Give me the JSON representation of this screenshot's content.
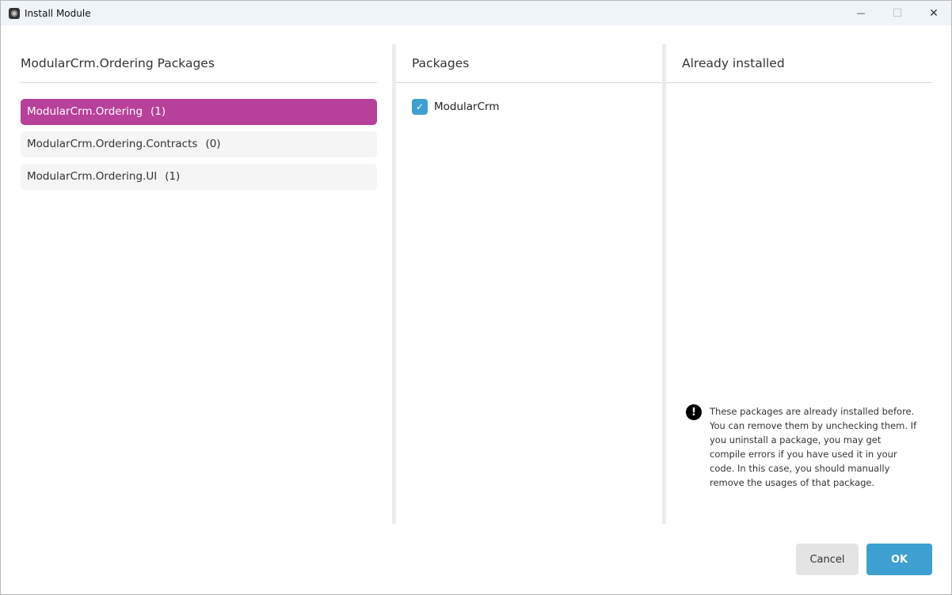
{
  "window": {
    "title": "Install Module",
    "minimize": "—",
    "maximize": "☐",
    "close": "✕"
  },
  "left": {
    "header": "ModularCrm.Ordering Packages",
    "items": [
      {
        "label": "ModularCrm.Ordering",
        "count": "(1)"
      },
      {
        "label": "ModularCrm.Ordering.Contracts",
        "count": "(0)"
      },
      {
        "label": "ModularCrm.Ordering.UI",
        "count": "(1)"
      }
    ]
  },
  "middle": {
    "header": "Packages",
    "packages": [
      {
        "label": "ModularCrm",
        "checked": true,
        "check": "✓"
      }
    ]
  },
  "right": {
    "header": "Already installed",
    "note_icon": "!",
    "note": "These packages are already installed before. You can remove them by unchecking them. If you uninstall a package, you may get compile errors if you have used it in your code. In this case, you should manually remove the usages of that package."
  },
  "footer": {
    "cancel": "Cancel",
    "ok": "OK"
  },
  "colors": {
    "accent": "#b7409a",
    "primary": "#3ea0d0"
  }
}
